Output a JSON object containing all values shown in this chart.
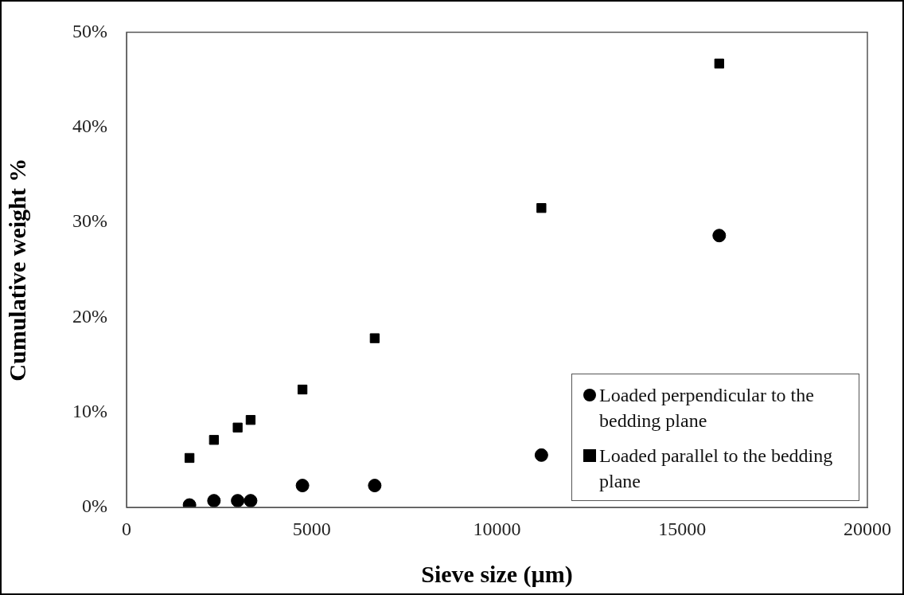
{
  "chart_data": {
    "type": "scatter",
    "xlabel": "Sieve size (µm)",
    "ylabel": "Cumulative weight %",
    "x": [
      1700,
      2360,
      3000,
      3350,
      4750,
      6700,
      11200,
      16000
    ],
    "series": [
      {
        "name": "Loaded perpendicular to the bedding plane",
        "color": "#000000",
        "marker": "circle",
        "values": [
          0.25,
          0.7,
          0.7,
          0.7,
          2.3,
          2.3,
          5.5,
          28.6
        ]
      },
      {
        "name": "Loaded parallel to the bedding plane",
        "color": "#000000",
        "marker": "square",
        "values": [
          5.2,
          7.1,
          8.4,
          9.2,
          12.4,
          17.8,
          31.5,
          46.7
        ]
      }
    ],
    "xlim": [
      0,
      20000
    ],
    "xticks": [
      0,
      5000,
      10000,
      15000,
      20000
    ],
    "ylim": [
      0,
      50
    ],
    "yticks": [
      {
        "value": 0,
        "label": "0%"
      },
      {
        "value": 10,
        "label": "10%"
      },
      {
        "value": 20,
        "label": "20%"
      },
      {
        "value": 30,
        "label": "30%"
      },
      {
        "value": 40,
        "label": "40%"
      },
      {
        "value": 50,
        "label": "50%"
      }
    ],
    "grid": false,
    "legend": "bottom right"
  }
}
